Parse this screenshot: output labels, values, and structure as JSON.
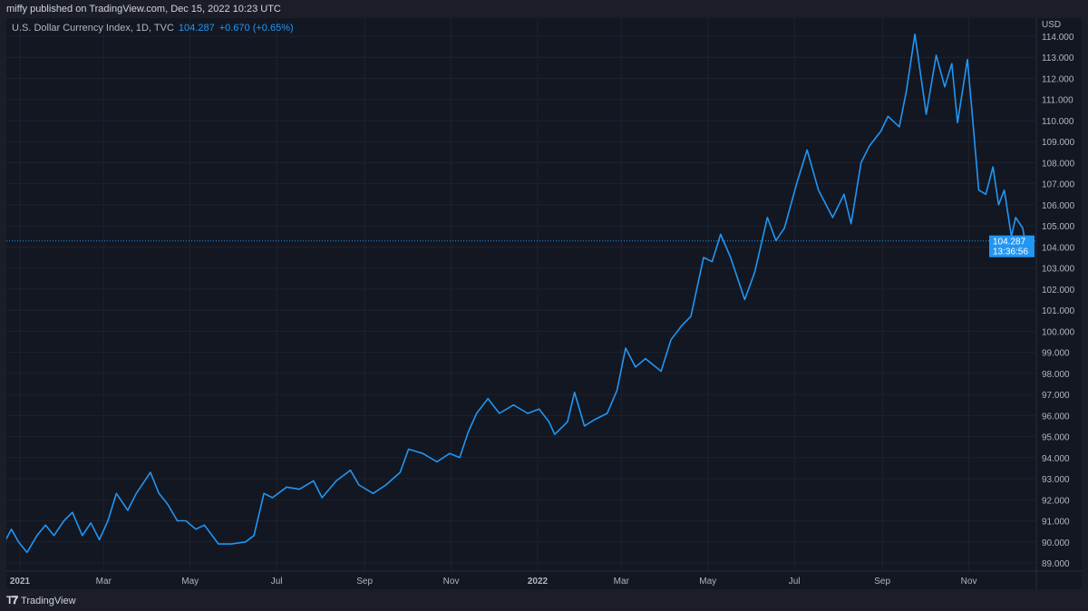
{
  "header": {
    "published": "miffy published on TradingView.com, Dec 15, 2022 10:23 UTC"
  },
  "legend": {
    "symbol": "U.S. Dollar Currency Index, 1D, TVC",
    "last": "104.287",
    "change": "+0.670 (+0.65%)"
  },
  "price_label": {
    "value": "104.287",
    "countdown": "13:36:56"
  },
  "footer": {
    "brand": "TradingView"
  },
  "colors": {
    "line": "#2196f3",
    "background": "#131722",
    "grid": "#1e222d"
  },
  "chart_data": {
    "type": "line",
    "ylabel": "USD",
    "ylim": [
      88.6,
      114.8
    ],
    "grid": true,
    "yticks": [
      "89.000",
      "90.000",
      "91.000",
      "92.000",
      "93.000",
      "94.000",
      "95.000",
      "96.000",
      "97.000",
      "98.000",
      "99.000",
      "100.000",
      "101.000",
      "102.000",
      "103.000",
      "104.000",
      "105.000",
      "106.000",
      "107.000",
      "108.000",
      "109.000",
      "110.000",
      "111.000",
      "112.000",
      "113.000",
      "114.000"
    ],
    "xticks": [
      {
        "date": "2021-01-01",
        "label": "2021",
        "bold": true
      },
      {
        "date": "2021-03-01",
        "label": "Mar"
      },
      {
        "date": "2021-05-01",
        "label": "May"
      },
      {
        "date": "2021-07-01",
        "label": "Jul"
      },
      {
        "date": "2021-09-01",
        "label": "Sep"
      },
      {
        "date": "2021-11-01",
        "label": "Nov"
      },
      {
        "date": "2022-01-01",
        "label": "2022",
        "bold": true
      },
      {
        "date": "2022-03-01",
        "label": "Mar"
      },
      {
        "date": "2022-05-01",
        "label": "May"
      },
      {
        "date": "2022-07-01",
        "label": "Jul"
      },
      {
        "date": "2022-09-01",
        "label": "Sep"
      },
      {
        "date": "2022-11-01",
        "label": "Nov"
      }
    ],
    "series": [
      {
        "points": [
          [
            "2020-12-22",
            90.1
          ],
          [
            "2020-12-26",
            90.6
          ],
          [
            "2020-12-31",
            90.0
          ],
          [
            "2021-01-06",
            89.5
          ],
          [
            "2021-01-13",
            90.3
          ],
          [
            "2021-01-19",
            90.8
          ],
          [
            "2021-01-25",
            90.3
          ],
          [
            "2021-02-01",
            91.0
          ],
          [
            "2021-02-07",
            91.4
          ],
          [
            "2021-02-14",
            90.3
          ],
          [
            "2021-02-20",
            90.9
          ],
          [
            "2021-02-26",
            90.1
          ],
          [
            "2021-03-04",
            91.0
          ],
          [
            "2021-03-10",
            92.3
          ],
          [
            "2021-03-18",
            91.5
          ],
          [
            "2021-03-24",
            92.3
          ],
          [
            "2021-04-03",
            93.3
          ],
          [
            "2021-04-09",
            92.3
          ],
          [
            "2021-04-15",
            91.8
          ],
          [
            "2021-04-22",
            91.0
          ],
          [
            "2021-04-28",
            91.0
          ],
          [
            "2021-05-05",
            90.6
          ],
          [
            "2021-05-11",
            90.8
          ],
          [
            "2021-05-21",
            89.9
          ],
          [
            "2021-05-30",
            89.9
          ],
          [
            "2021-06-09",
            90.0
          ],
          [
            "2021-06-15",
            90.3
          ],
          [
            "2021-06-22",
            92.3
          ],
          [
            "2021-06-28",
            92.1
          ],
          [
            "2021-07-08",
            92.6
          ],
          [
            "2021-07-17",
            92.5
          ],
          [
            "2021-07-27",
            92.9
          ],
          [
            "2021-08-02",
            92.1
          ],
          [
            "2021-08-12",
            92.9
          ],
          [
            "2021-08-22",
            93.4
          ],
          [
            "2021-08-28",
            92.7
          ],
          [
            "2021-09-07",
            92.3
          ],
          [
            "2021-09-16",
            92.7
          ],
          [
            "2021-09-26",
            93.3
          ],
          [
            "2021-10-02",
            94.4
          ],
          [
            "2021-10-12",
            94.2
          ],
          [
            "2021-10-22",
            93.8
          ],
          [
            "2021-10-31",
            94.2
          ],
          [
            "2021-11-07",
            94.0
          ],
          [
            "2021-11-13",
            95.2
          ],
          [
            "2021-11-19",
            96.1
          ],
          [
            "2021-11-27",
            96.8
          ],
          [
            "2021-12-05",
            96.1
          ],
          [
            "2021-12-15",
            96.5
          ],
          [
            "2021-12-25",
            96.1
          ],
          [
            "2022-01-02",
            96.3
          ],
          [
            "2022-01-09",
            95.7
          ],
          [
            "2022-01-13",
            95.1
          ],
          [
            "2022-01-22",
            95.7
          ],
          [
            "2022-01-27",
            97.1
          ],
          [
            "2022-02-03",
            95.5
          ],
          [
            "2022-02-10",
            95.8
          ],
          [
            "2022-02-19",
            96.1
          ],
          [
            "2022-02-26",
            97.2
          ],
          [
            "2022-03-04",
            99.2
          ],
          [
            "2022-03-11",
            98.3
          ],
          [
            "2022-03-18",
            98.7
          ],
          [
            "2022-03-29",
            98.1
          ],
          [
            "2022-04-05",
            99.6
          ],
          [
            "2022-04-13",
            100.3
          ],
          [
            "2022-04-19",
            100.7
          ],
          [
            "2022-04-28",
            103.5
          ],
          [
            "2022-05-04",
            103.3
          ],
          [
            "2022-05-10",
            104.6
          ],
          [
            "2022-05-17",
            103.5
          ],
          [
            "2022-05-27",
            101.5
          ],
          [
            "2022-06-03",
            102.8
          ],
          [
            "2022-06-12",
            105.4
          ],
          [
            "2022-06-18",
            104.3
          ],
          [
            "2022-06-24",
            104.9
          ],
          [
            "2022-07-03",
            107.1
          ],
          [
            "2022-07-10",
            108.6
          ],
          [
            "2022-07-18",
            106.7
          ],
          [
            "2022-07-28",
            105.4
          ],
          [
            "2022-08-05",
            106.5
          ],
          [
            "2022-08-10",
            105.1
          ],
          [
            "2022-08-17",
            108.0
          ],
          [
            "2022-08-23",
            108.8
          ],
          [
            "2022-08-31",
            109.5
          ],
          [
            "2022-09-05",
            110.2
          ],
          [
            "2022-09-13",
            109.7
          ],
          [
            "2022-09-18",
            111.4
          ],
          [
            "2022-09-24",
            114.1
          ],
          [
            "2022-10-02",
            110.3
          ],
          [
            "2022-10-09",
            113.1
          ],
          [
            "2022-10-15",
            111.6
          ],
          [
            "2022-10-20",
            112.7
          ],
          [
            "2022-10-24",
            109.9
          ],
          [
            "2022-10-31",
            112.9
          ],
          [
            "2022-11-03",
            110.6
          ],
          [
            "2022-11-08",
            106.7
          ],
          [
            "2022-11-13",
            106.5
          ],
          [
            "2022-11-18",
            107.8
          ],
          [
            "2022-11-22",
            106.0
          ],
          [
            "2022-11-26",
            106.7
          ],
          [
            "2022-12-01",
            104.5
          ],
          [
            "2022-12-04",
            105.4
          ],
          [
            "2022-12-09",
            104.9
          ],
          [
            "2022-12-12",
            103.7
          ],
          [
            "2022-12-14",
            104.287
          ]
        ]
      }
    ]
  }
}
